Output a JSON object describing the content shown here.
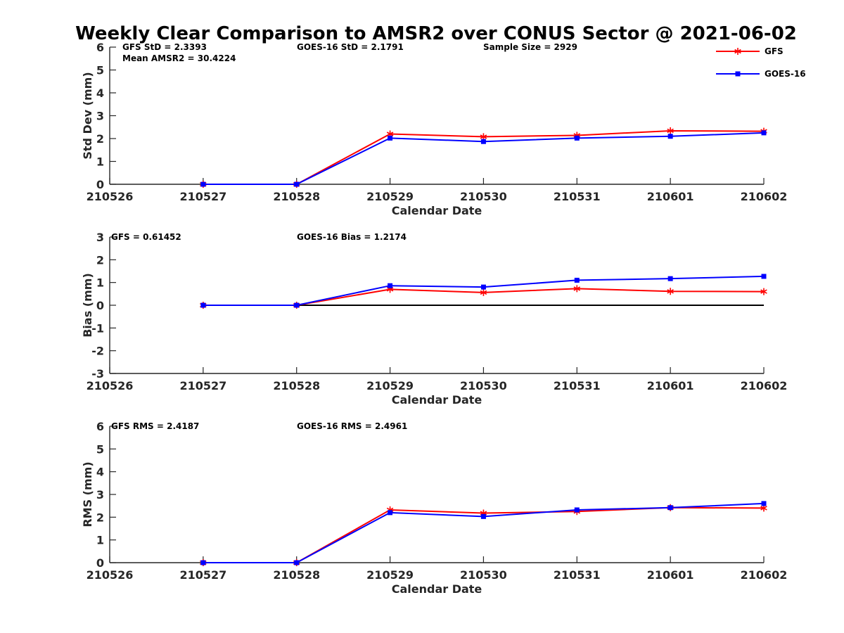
{
  "figure": {
    "title": "Weekly Clear Comparison to AMSR2 over CONUS Sector @ 2021-06-02"
  },
  "legend": {
    "placement": "top-right",
    "entries": [
      {
        "name": "GFS",
        "color": "#ff0000",
        "marker": "asterisk"
      },
      {
        "name": "GOES-16",
        "color": "#0000ff",
        "marker": "square"
      }
    ]
  },
  "chart_data": [
    {
      "type": "line",
      "xlabel": "Calendar Date",
      "ylabel": "Std Dev (mm)",
      "x_ticks": [
        "210526",
        "210527",
        "210528",
        "210529",
        "210530",
        "210531",
        "210601",
        "210602"
      ],
      "ylim": [
        0,
        6
      ],
      "y_ticks": [
        "0",
        "1",
        "2",
        "3",
        "4",
        "5",
        "6"
      ],
      "grid": false,
      "zero_line": false,
      "annotations": [
        {
          "text": "GFS StD = 2.3393",
          "row": 0,
          "col": 0
        },
        {
          "text": "GOES-16 StD = 2.1791",
          "row": 0,
          "col": 1
        },
        {
          "text": "Sample Size = 2929",
          "row": 0,
          "col": 2
        },
        {
          "text": "Mean AMSR2 = 30.4224",
          "row": 1,
          "col": 0
        }
      ],
      "series": [
        {
          "name": "GFS",
          "x": [
            "210527",
            "210528",
            "210529",
            "210530",
            "210531",
            "210601",
            "210602"
          ],
          "values": [
            0,
            0,
            2.2,
            2.08,
            2.14,
            2.34,
            2.32
          ]
        },
        {
          "name": "GOES-16",
          "x": [
            "210527",
            "210528",
            "210529",
            "210530",
            "210531",
            "210601",
            "210602"
          ],
          "values": [
            0,
            0,
            2.02,
            1.87,
            2.02,
            2.1,
            2.25
          ]
        }
      ]
    },
    {
      "type": "line",
      "xlabel": "Calendar Date",
      "ylabel": "Bias (mm)",
      "x_ticks": [
        "210526",
        "210527",
        "210528",
        "210529",
        "210530",
        "210531",
        "210601",
        "210602"
      ],
      "ylim": [
        -3,
        3
      ],
      "y_ticks": [
        "-3",
        "-2",
        "-1",
        "0",
        "1",
        "2",
        "3"
      ],
      "grid": false,
      "zero_line": true,
      "annotations": [
        {
          "text": "GFS = 0.61452",
          "row": 0,
          "col": 0
        },
        {
          "text": "GOES-16 Bias  = 1.2174",
          "row": 0,
          "col": 1
        }
      ],
      "series": [
        {
          "name": "GFS",
          "x": [
            "210527",
            "210528",
            "210529",
            "210530",
            "210531",
            "210601",
            "210602"
          ],
          "values": [
            0,
            0,
            0.7,
            0.56,
            0.73,
            0.61,
            0.6
          ]
        },
        {
          "name": "GOES-16",
          "x": [
            "210527",
            "210528",
            "210529",
            "210530",
            "210531",
            "210601",
            "210602"
          ],
          "values": [
            0,
            0,
            0.86,
            0.8,
            1.1,
            1.17,
            1.27
          ]
        }
      ]
    },
    {
      "type": "line",
      "xlabel": "Calendar Date",
      "ylabel": "RMS (mm)",
      "x_ticks": [
        "210526",
        "210527",
        "210528",
        "210529",
        "210530",
        "210531",
        "210601",
        "210602"
      ],
      "ylim": [
        0,
        6
      ],
      "y_ticks": [
        "0",
        "1",
        "2",
        "3",
        "4",
        "5",
        "6"
      ],
      "grid": false,
      "zero_line": false,
      "annotations": [
        {
          "text": "GFS RMS = 2.4187",
          "row": 0,
          "col": 0
        },
        {
          "text": "GOES-16 RMS = 2.4961",
          "row": 0,
          "col": 1
        }
      ],
      "series": [
        {
          "name": "GFS",
          "x": [
            "210527",
            "210528",
            "210529",
            "210530",
            "210531",
            "210601",
            "210602"
          ],
          "values": [
            0,
            0,
            2.32,
            2.18,
            2.25,
            2.42,
            2.4
          ]
        },
        {
          "name": "GOES-16",
          "x": [
            "210527",
            "210528",
            "210529",
            "210530",
            "210531",
            "210601",
            "210602"
          ],
          "values": [
            0,
            0,
            2.2,
            2.03,
            2.32,
            2.42,
            2.6
          ]
        }
      ]
    }
  ]
}
